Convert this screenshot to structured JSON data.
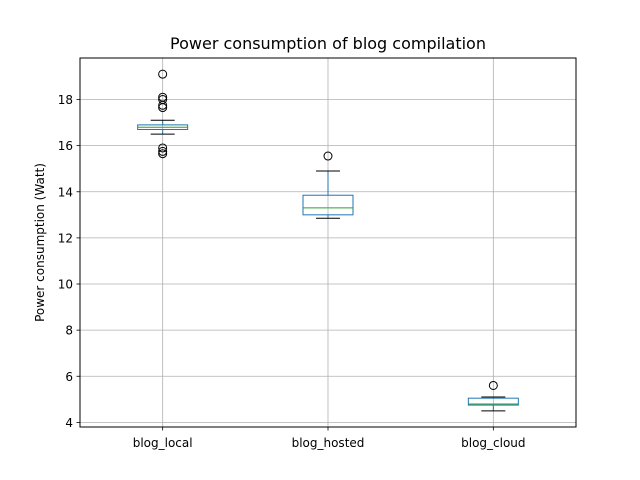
{
  "chart_data": {
    "type": "boxplot",
    "title": "Power consumption of blog compilation",
    "xlabel": "",
    "ylabel": "Power consumption (Watt)",
    "ylim": [
      3.8,
      19.8
    ],
    "yticks": [
      4,
      6,
      8,
      10,
      12,
      14,
      16,
      18
    ],
    "grid": true,
    "categories": [
      "blog_local",
      "blog_hosted",
      "blog_cloud"
    ],
    "series": [
      {
        "category": "blog_local",
        "whisker_low": 16.5,
        "q1": 16.7,
        "median": 16.8,
        "q3": 16.9,
        "whisker_high": 17.1,
        "outliers": [
          19.1,
          18.1,
          18.0,
          17.75,
          17.65,
          15.9,
          15.75,
          15.65
        ]
      },
      {
        "category": "blog_hosted",
        "whisker_low": 12.85,
        "q1": 13.0,
        "median": 13.3,
        "q3": 13.85,
        "whisker_high": 14.9,
        "outliers": [
          15.55
        ]
      },
      {
        "category": "blog_cloud",
        "whisker_low": 4.5,
        "q1": 4.75,
        "median": 4.8,
        "q3": 5.05,
        "whisker_high": 5.1,
        "outliers": [
          5.6
        ]
      }
    ],
    "colors": {
      "box": "#1f77b4",
      "median": "#2ca02c",
      "whisker": "#000000",
      "grid": "#b0b0b0"
    }
  }
}
